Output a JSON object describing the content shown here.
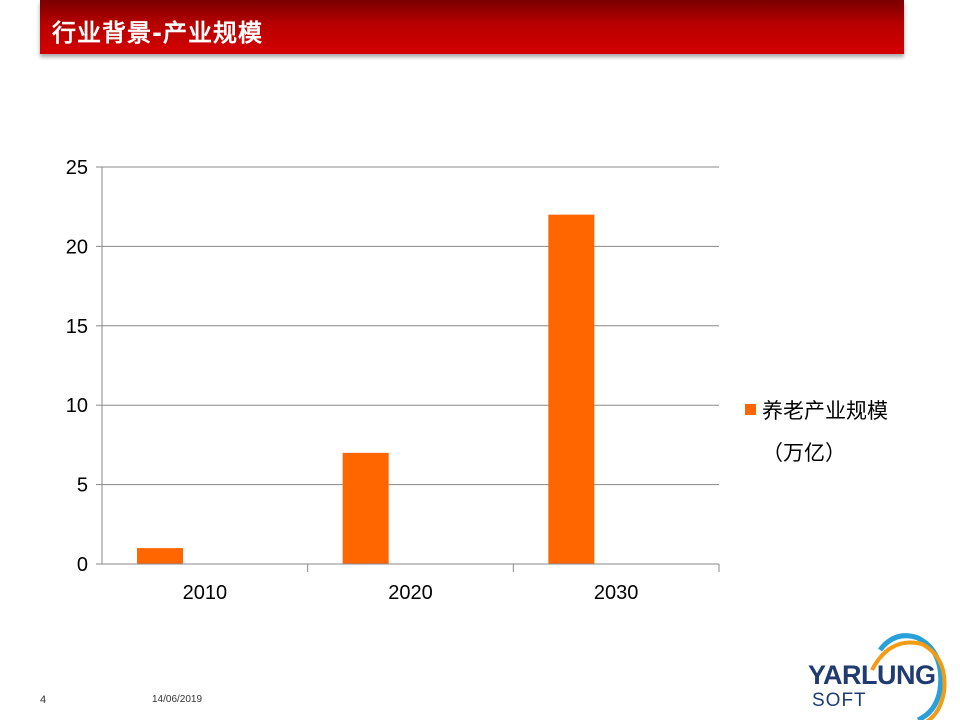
{
  "slide": {
    "title": "行业背景-产业规模",
    "page_number": "4",
    "date": "14/06/2019"
  },
  "logo": {
    "main_text": "YARLUNG",
    "sub_text": "SOFT"
  },
  "colors": {
    "title_bar": "#c00000",
    "bar": "#ff6600",
    "grid": "#888888",
    "logo_blue": "#1f3b72",
    "logo_swoosh_blue": "#2aa0d8",
    "logo_swoosh_orange": "#f39c12"
  },
  "chart_data": {
    "type": "bar",
    "categories": [
      "2010",
      "2020",
      "2030"
    ],
    "series": [
      {
        "name": "养老产业规模（万亿）",
        "values": [
          1,
          7,
          22
        ]
      }
    ],
    "legend_lines": [
      "养老产业规模",
      "（万亿）"
    ],
    "ylim": [
      0,
      25
    ],
    "yticks": [
      0,
      5,
      10,
      15,
      20,
      25
    ],
    "grid": true,
    "legend_position": "right"
  }
}
